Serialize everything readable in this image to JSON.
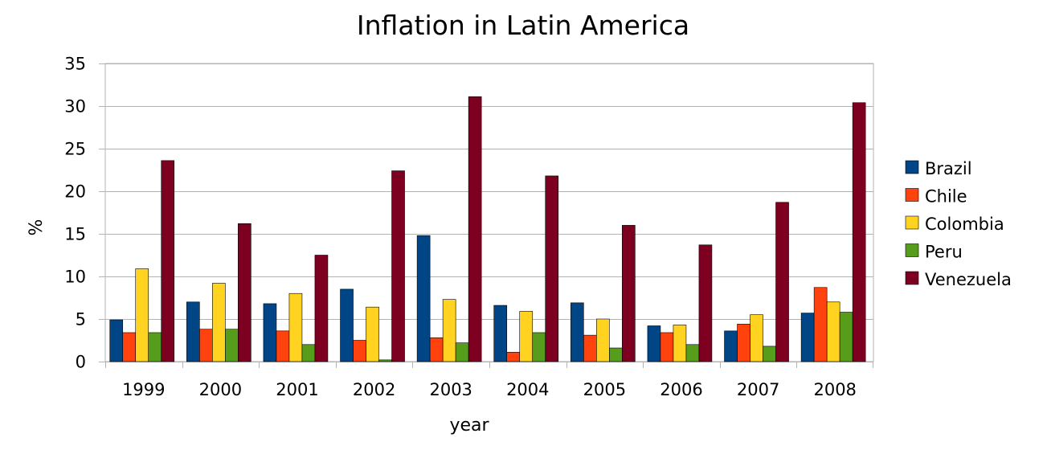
{
  "chart_data": {
    "type": "bar",
    "title": "Inflation in Latin America",
    "xlabel": "year",
    "ylabel": "%",
    "ylim": [
      0,
      35
    ],
    "yticks": [
      0,
      5,
      10,
      15,
      20,
      25,
      30,
      35
    ],
    "grid": true,
    "legend_position": "right",
    "categories": [
      "1999",
      "2000",
      "2001",
      "2002",
      "2003",
      "2004",
      "2005",
      "2006",
      "2007",
      "2008"
    ],
    "series": [
      {
        "name": "Brazil",
        "color": "#004586",
        "values": [
          4.9,
          7.0,
          6.8,
          8.5,
          14.8,
          6.6,
          6.9,
          4.2,
          3.6,
          5.7
        ]
      },
      {
        "name": "Chile",
        "color": "#ff420e",
        "values": [
          3.4,
          3.8,
          3.6,
          2.5,
          2.8,
          1.1,
          3.1,
          3.4,
          4.4,
          8.7
        ]
      },
      {
        "name": "Colombia",
        "color": "#ffd320",
        "values": [
          10.9,
          9.2,
          8.0,
          6.4,
          7.3,
          5.9,
          5.0,
          4.3,
          5.5,
          7.0
        ]
      },
      {
        "name": "Peru",
        "color": "#579d1c",
        "values": [
          3.4,
          3.8,
          2.0,
          0.2,
          2.2,
          3.4,
          1.6,
          2.0,
          1.8,
          5.8
        ]
      },
      {
        "name": "Venezuela",
        "color": "#7e0021",
        "values": [
          23.6,
          16.2,
          12.5,
          22.4,
          31.1,
          21.8,
          16.0,
          13.7,
          18.7,
          30.4
        ]
      }
    ]
  }
}
